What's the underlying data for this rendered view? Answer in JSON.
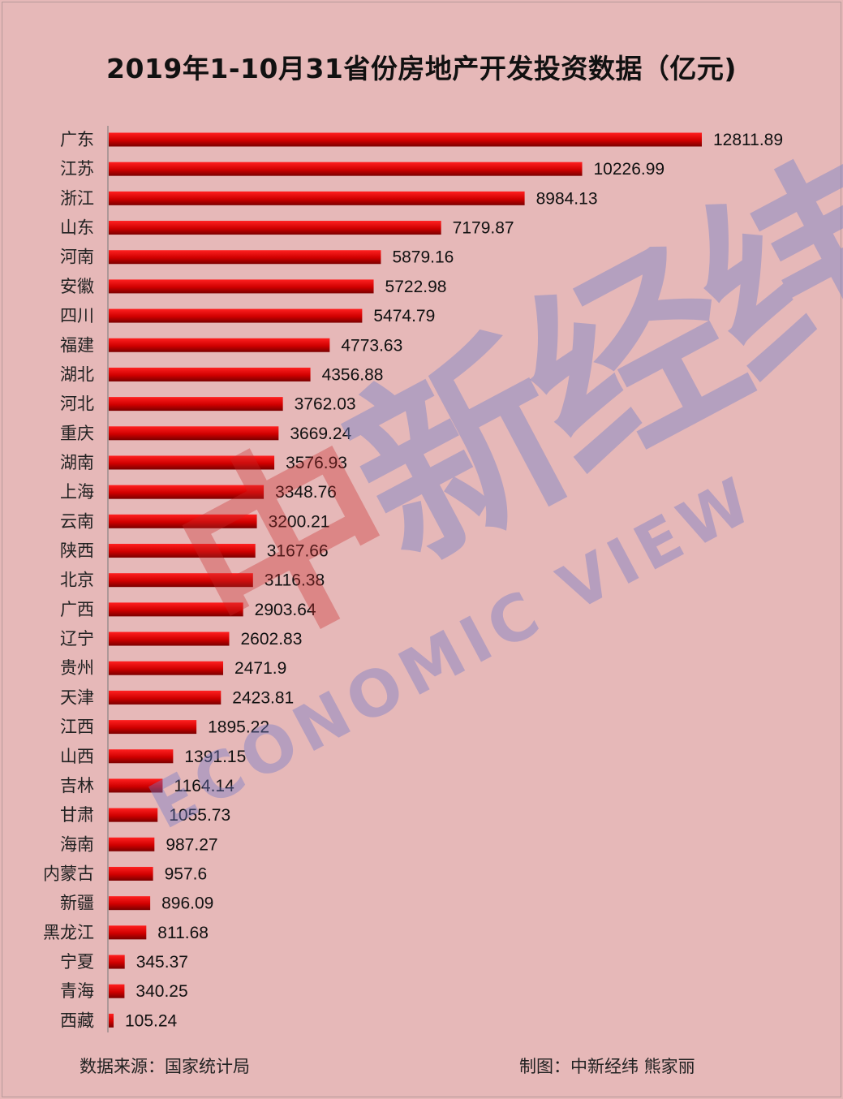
{
  "title": "2019年1-10月31省份房地产开发投资数据（亿元)",
  "footer": {
    "source": "数据来源：国家统计局",
    "credit": "制图：中新经纬 熊家丽"
  },
  "watermark": {
    "red_char": "中",
    "blue_chars": "新经纬",
    "english": "ECONOMIC VIEW"
  },
  "colors": {
    "background": "#e6b8b8",
    "bar_top": "#ff1a1a",
    "bar_bottom": "#8b0000"
  },
  "chart_data": {
    "type": "bar",
    "orientation": "horizontal",
    "title": "2019年1-10月31省份房地产开发投资数据（亿元)",
    "xlabel": "",
    "ylabel": "",
    "grid": false,
    "legend": "none",
    "xlim": [
      0,
      13000
    ],
    "categories": [
      "广东",
      "江苏",
      "浙江",
      "山东",
      "河南",
      "安徽",
      "四川",
      "福建",
      "湖北",
      "河北",
      "重庆",
      "湖南",
      "上海",
      "云南",
      "陕西",
      "北京",
      "广西",
      "辽宁",
      "贵州",
      "天津",
      "江西",
      "山西",
      "吉林",
      "甘肃",
      "海南",
      "内蒙古",
      "新疆",
      "黑龙江",
      "宁夏",
      "青海",
      "西藏"
    ],
    "values": [
      12811.89,
      10226.99,
      8984.13,
      7179.87,
      5879.16,
      5722.98,
      5474.79,
      4773.63,
      4356.88,
      3762.03,
      3669.24,
      3576.93,
      3348.76,
      3200.21,
      3167.66,
      3116.38,
      2903.64,
      2602.83,
      2471.9,
      2423.81,
      1895.22,
      1391.15,
      1164.14,
      1055.73,
      987.27,
      957.6,
      896.09,
      811.68,
      345.37,
      340.25,
      105.24
    ],
    "value_labels": [
      "12811.89",
      "10226.99",
      "8984.13",
      "7179.87",
      "5879.16",
      "5722.98",
      "5474.79",
      "4773.63",
      "4356.88",
      "3762.03",
      "3669.24",
      "3576.93",
      "3348.76",
      "3200.21",
      "3167.66",
      "3116.38",
      "2903.64",
      "2602.83",
      "2471.9",
      "2423.81",
      "1895.22",
      "1391.15",
      "1164.14",
      "1055.73",
      "987.27",
      "957.6",
      "896.09",
      "811.68",
      "345.37",
      "340.25",
      "105.24"
    ]
  }
}
